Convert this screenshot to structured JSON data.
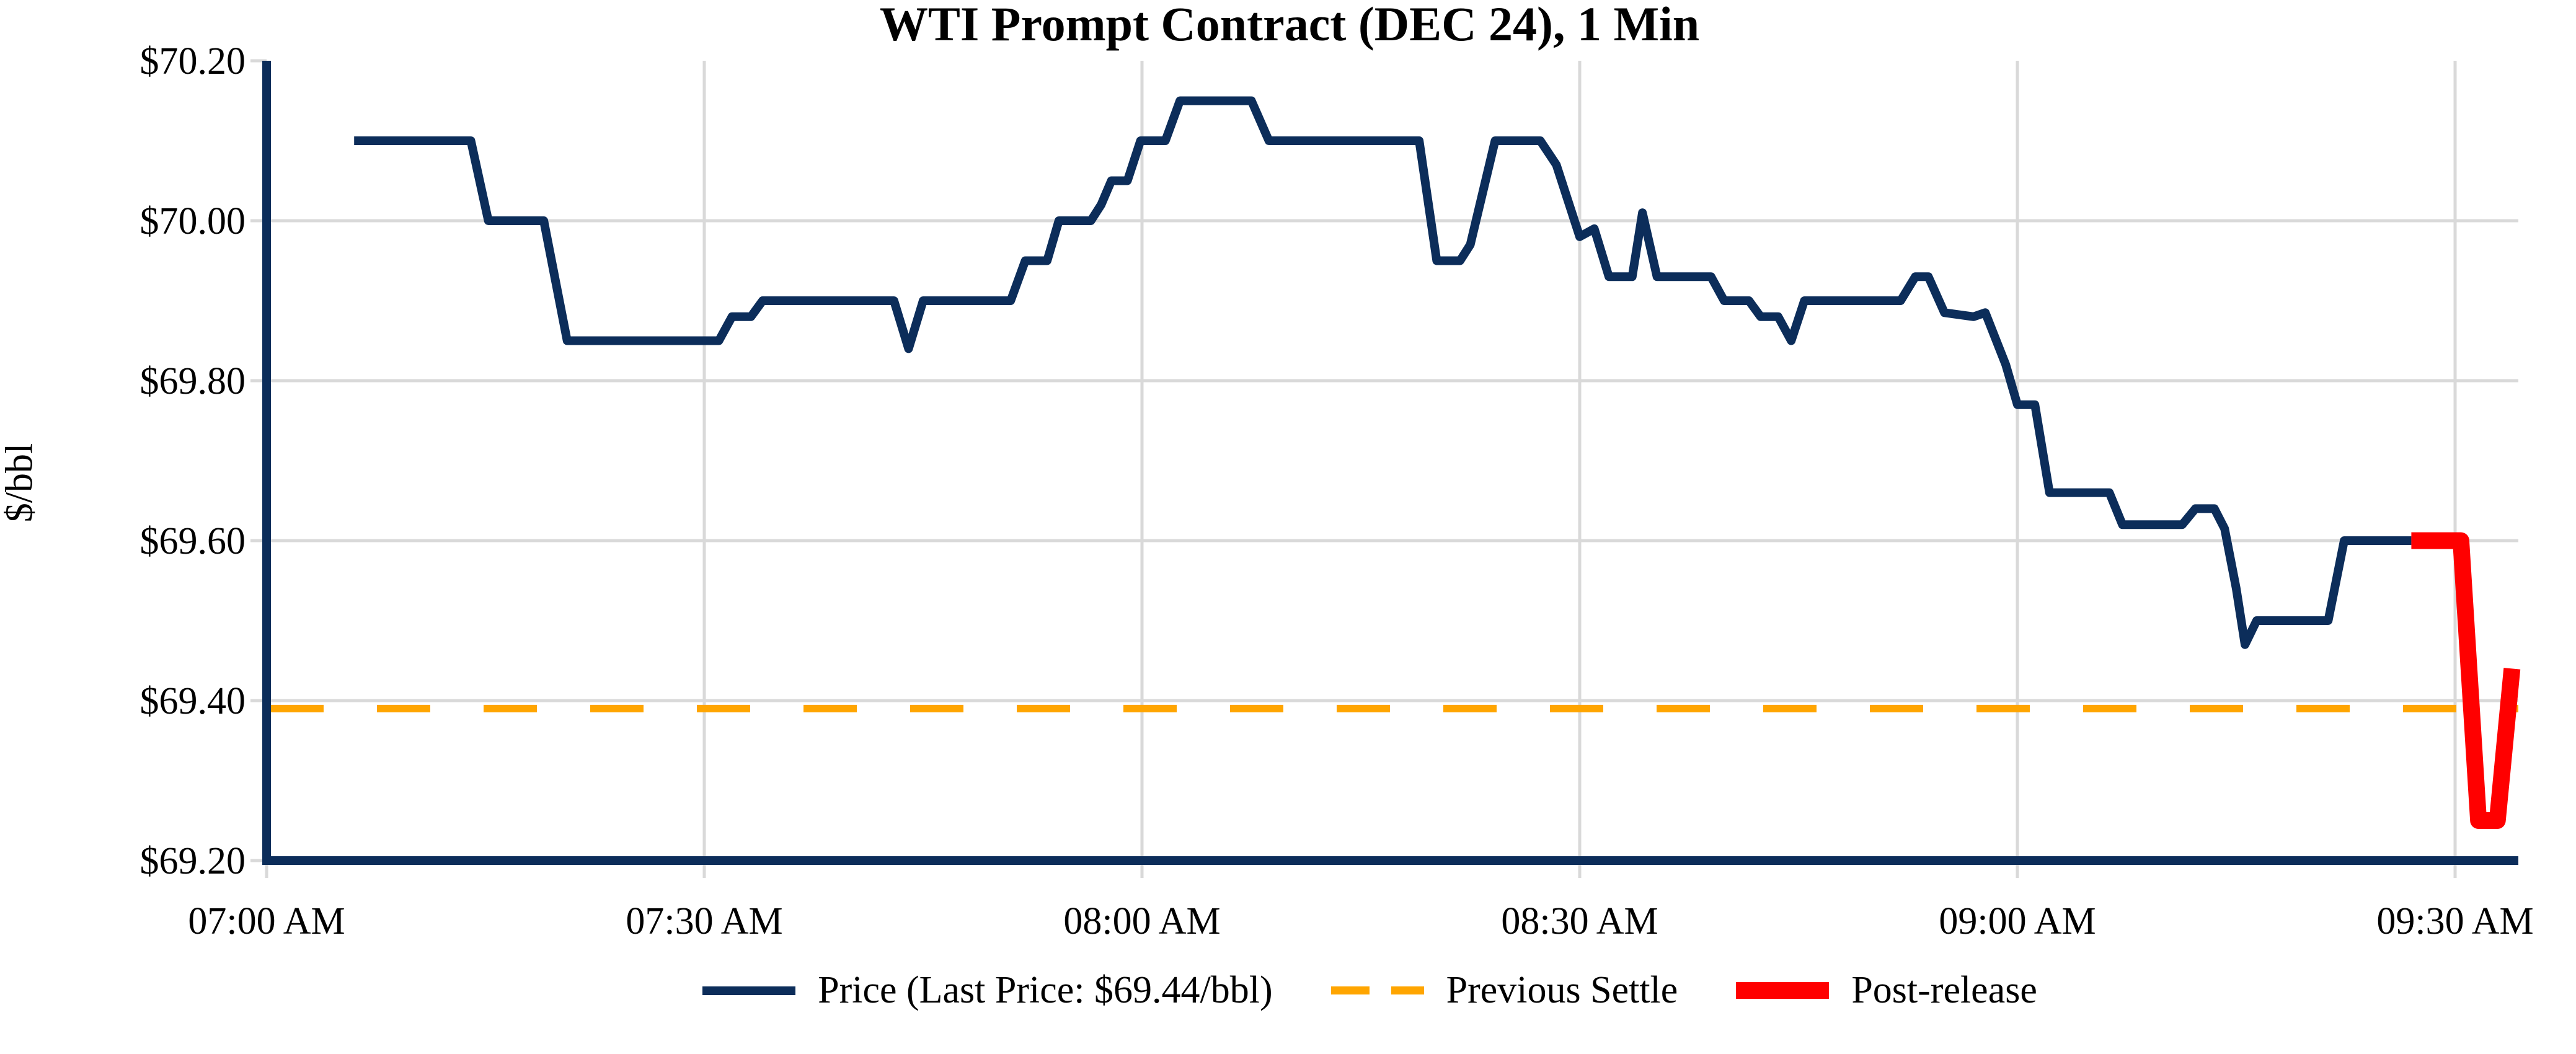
{
  "chart_data": {
    "type": "line",
    "title": "WTI Prompt Contract (DEC 24), 1 Min",
    "ylabel": "$/bbl",
    "xlabel": "",
    "grid": true,
    "legend_position": "bottom-center",
    "ylim": [
      69.2,
      70.2
    ],
    "xlim_minutes": [
      420,
      574.8
    ],
    "y_ticks": [
      {
        "value": 70.2,
        "label": "$70.20"
      },
      {
        "value": 70.0,
        "label": "$70.00"
      },
      {
        "value": 69.8,
        "label": "$69.80"
      },
      {
        "value": 69.6,
        "label": "$69.60"
      },
      {
        "value": 69.4,
        "label": "$69.40"
      },
      {
        "value": 69.2,
        "label": "$69.20"
      }
    ],
    "x_ticks": [
      {
        "minute": 420,
        "label": "07:00 AM"
      },
      {
        "minute": 450,
        "label": "07:30 AM"
      },
      {
        "minute": 480,
        "label": "08:00 AM"
      },
      {
        "minute": 510,
        "label": "08:30 AM"
      },
      {
        "minute": 540,
        "label": "09:00 AM"
      },
      {
        "minute": 570,
        "label": "09:30 AM"
      }
    ],
    "last_price": 69.44,
    "previous_settle": {
      "value": 69.39,
      "label": "Previous Settle",
      "color": "#FFA500",
      "style": "dashed",
      "width": 12
    },
    "series": [
      {
        "name": "Price (Last Price: $69.44/bbl)",
        "color": "#0C2D5A",
        "style": "solid",
        "width": 14,
        "points": [
          [
            426,
            70.1
          ],
          [
            434,
            70.1
          ],
          [
            435.2,
            70.0
          ],
          [
            439,
            70.0
          ],
          [
            440.6,
            69.85
          ],
          [
            451,
            69.85
          ],
          [
            451.9,
            69.88
          ],
          [
            453.2,
            69.88
          ],
          [
            454,
            69.9
          ],
          [
            463,
            69.9
          ],
          [
            464,
            69.84
          ],
          [
            465,
            69.9
          ],
          [
            471,
            69.9
          ],
          [
            472,
            69.95
          ],
          [
            473.5,
            69.95
          ],
          [
            474.3,
            70.0
          ],
          [
            476.5,
            70.0
          ],
          [
            477.2,
            70.02
          ],
          [
            477.9,
            70.05
          ],
          [
            479,
            70.05
          ],
          [
            479.9,
            70.1
          ],
          [
            481.6,
            70.1
          ],
          [
            482.6,
            70.15
          ],
          [
            487.5,
            70.15
          ],
          [
            488.7,
            70.1
          ],
          [
            499,
            70.1
          ],
          [
            500.2,
            69.95
          ],
          [
            501.8,
            69.95
          ],
          [
            502.5,
            69.97
          ],
          [
            504.2,
            70.1
          ],
          [
            507.3,
            70.1
          ],
          [
            508.4,
            70.07
          ],
          [
            510,
            69.98
          ],
          [
            511,
            69.99
          ],
          [
            512,
            69.93
          ],
          [
            513.6,
            69.93
          ],
          [
            514.3,
            70.01
          ],
          [
            515.3,
            69.93
          ],
          [
            519,
            69.93
          ],
          [
            519.9,
            69.9
          ],
          [
            521.6,
            69.9
          ],
          [
            522.4,
            69.88
          ],
          [
            523.6,
            69.88
          ],
          [
            524.5,
            69.85
          ],
          [
            525.4,
            69.9
          ],
          [
            532,
            69.9
          ],
          [
            533,
            69.93
          ],
          [
            533.9,
            69.93
          ],
          [
            535,
            69.885
          ],
          [
            537,
            69.88
          ],
          [
            537.8,
            69.885
          ],
          [
            539.2,
            69.82
          ],
          [
            540,
            69.77
          ],
          [
            541.2,
            69.77
          ],
          [
            542.2,
            69.66
          ],
          [
            546.3,
            69.66
          ],
          [
            547.2,
            69.62
          ],
          [
            551.3,
            69.62
          ],
          [
            552.2,
            69.64
          ],
          [
            553.5,
            69.64
          ],
          [
            554.2,
            69.615
          ],
          [
            555,
            69.54
          ],
          [
            555.6,
            69.47
          ],
          [
            556.4,
            69.5
          ],
          [
            561.3,
            69.5
          ],
          [
            562.4,
            69.6
          ],
          [
            567,
            69.6
          ]
        ]
      },
      {
        "name": "Post-release",
        "color": "#FF0000",
        "style": "solid",
        "width": 27,
        "points": [
          [
            567,
            69.6
          ],
          [
            570.4,
            69.6
          ],
          [
            571.6,
            69.25
          ],
          [
            572.9,
            69.25
          ],
          [
            573.9,
            69.44
          ]
        ]
      }
    ],
    "axis_color": "#0C2D5A",
    "gridline_color": "#D9D9D9",
    "tick_label_color": "#000000"
  },
  "legend": {
    "price": "Price (Last Price: $69.44/bbl)",
    "previous_settle": "Previous Settle",
    "post_release": "Post-release"
  }
}
